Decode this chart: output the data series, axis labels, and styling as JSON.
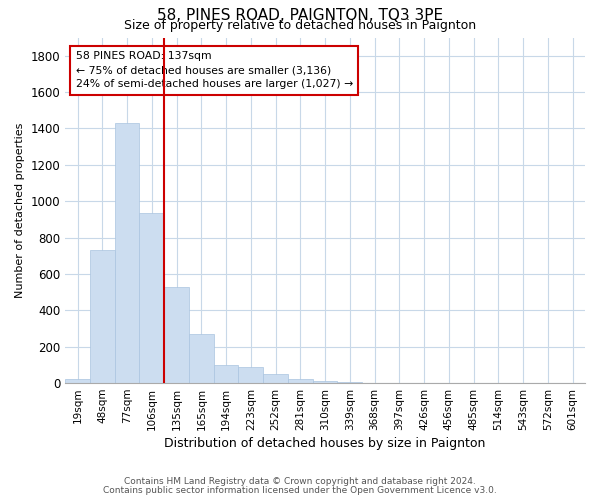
{
  "title": "58, PINES ROAD, PAIGNTON, TQ3 3PE",
  "subtitle": "Size of property relative to detached houses in Paignton",
  "xlabel": "Distribution of detached houses by size in Paignton",
  "ylabel": "Number of detached properties",
  "bin_labels": [
    "19sqm",
    "48sqm",
    "77sqm",
    "106sqm",
    "135sqm",
    "165sqm",
    "194sqm",
    "223sqm",
    "252sqm",
    "281sqm",
    "310sqm",
    "339sqm",
    "368sqm",
    "397sqm",
    "426sqm",
    "456sqm",
    "485sqm",
    "514sqm",
    "543sqm",
    "572sqm",
    "601sqm"
  ],
  "bar_values": [
    20,
    730,
    1430,
    935,
    530,
    270,
    100,
    90,
    50,
    25,
    10,
    5,
    2,
    1,
    0,
    0,
    0,
    0,
    0,
    0,
    0
  ],
  "bar_color": "#ccddf0",
  "bar_edge_color": "#aac4e0",
  "ylim": [
    0,
    1900
  ],
  "yticks": [
    0,
    200,
    400,
    600,
    800,
    1000,
    1200,
    1400,
    1600,
    1800
  ],
  "property_line_color": "#cc0000",
  "annotation_line1": "58 PINES ROAD: 137sqm",
  "annotation_line2": "← 75% of detached houses are smaller (3,136)",
  "annotation_line3": "24% of semi-detached houses are larger (1,027) →",
  "annotation_box_color": "#ffffff",
  "annotation_box_edge": "#cc0000",
  "footnote1": "Contains HM Land Registry data © Crown copyright and database right 2024.",
  "footnote2": "Contains public sector information licensed under the Open Government Licence v3.0.",
  "background_color": "#ffffff",
  "grid_color": "#c8d8e8"
}
